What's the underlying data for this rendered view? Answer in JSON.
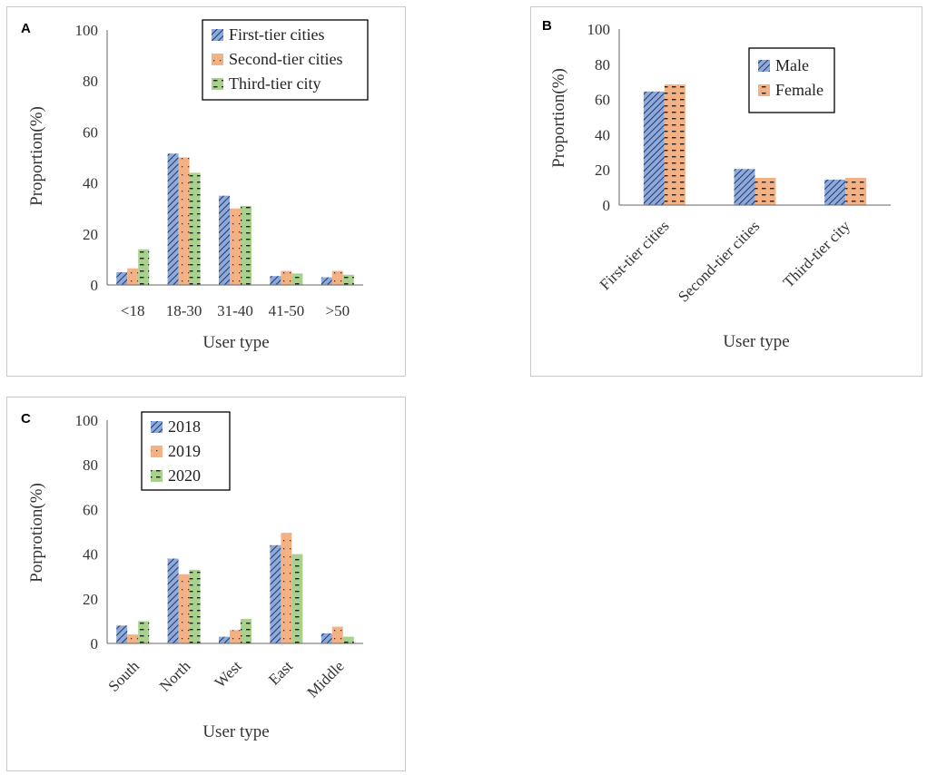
{
  "chart_data": [
    {
      "panel": "A",
      "type": "bar",
      "title": "",
      "xlabel": "User type",
      "ylabel": "Proportion(%)",
      "ylim": [
        0,
        100
      ],
      "yticks": [
        0,
        20,
        40,
        60,
        80,
        100
      ],
      "categories": [
        "<18",
        "18-30",
        "31-40",
        "41-50",
        ">50"
      ],
      "series": [
        {
          "name": "First-tier cities",
          "values": [
            5,
            51.5,
            35,
            3.5,
            3
          ],
          "color": "#8ea9db",
          "pattern": "diag"
        },
        {
          "name": "Second-tier cities",
          "values": [
            6.5,
            50,
            30,
            5.5,
            5.5
          ],
          "color": "#f4b183",
          "pattern": "dots"
        },
        {
          "name": "Third-tier city",
          "values": [
            14,
            44,
            31,
            4.5,
            4
          ],
          "color": "#a9d18e",
          "pattern": "dash"
        }
      ],
      "legend_position": "top-right"
    },
    {
      "panel": "B",
      "type": "bar",
      "title": "",
      "xlabel": "User type",
      "ylabel": "Proportion(%)",
      "ylim": [
        0,
        100
      ],
      "yticks": [
        0,
        20,
        40,
        60,
        80,
        100
      ],
      "categories": [
        "First-tier cities",
        "Second-tier cities",
        "Third-tier city"
      ],
      "series": [
        {
          "name": "Male",
          "values": [
            64.5,
            20.5,
            14.5
          ],
          "color": "#8ea9db",
          "pattern": "diag"
        },
        {
          "name": "Female",
          "values": [
            68.5,
            15.5,
            15.5
          ],
          "color": "#f4b183",
          "pattern": "dash"
        }
      ],
      "legend_position": "top-right"
    },
    {
      "panel": "C",
      "type": "bar",
      "title": "",
      "xlabel": "User type",
      "ylabel": "Porprotion(%)",
      "ylim": [
        0,
        100
      ],
      "yticks": [
        0,
        20,
        40,
        60,
        80,
        100
      ],
      "categories": [
        "South",
        "North",
        "West",
        "East",
        "Middle"
      ],
      "series": [
        {
          "name": "2018",
          "values": [
            8,
            38,
            3,
            44,
            4.5
          ],
          "color": "#8ea9db",
          "pattern": "diag"
        },
        {
          "name": "2019",
          "values": [
            4,
            31,
            6,
            49.5,
            7.5
          ],
          "color": "#f4b183",
          "pattern": "dots"
        },
        {
          "name": "2020",
          "values": [
            10,
            33,
            11,
            40,
            3
          ],
          "color": "#a9d18e",
          "pattern": "dash"
        }
      ],
      "legend_position": "top-left"
    }
  ]
}
